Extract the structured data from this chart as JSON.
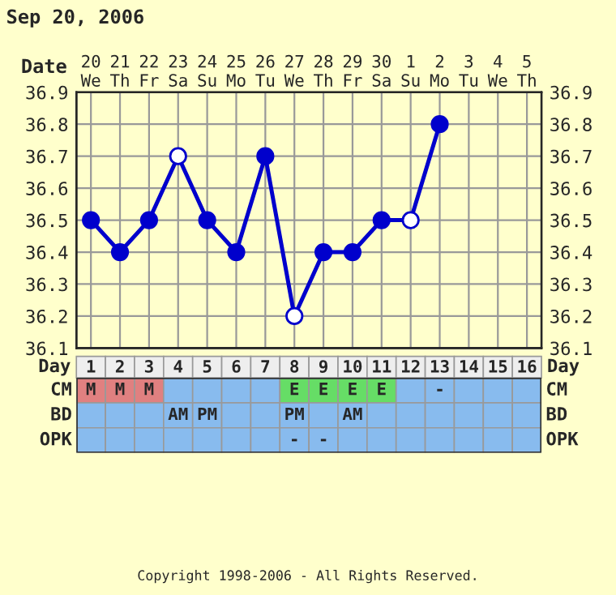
{
  "chart_data": [
    {
      "type": "line",
      "title": "Sep 20, 2006",
      "xlabel": "Day",
      "x2label": "Date",
      "xlim": [
        0.5,
        16.5
      ],
      "xticks": [
        1,
        2,
        3,
        4,
        5,
        6,
        7,
        8,
        9,
        10,
        11,
        12,
        13,
        14,
        15,
        16
      ],
      "x2lim": [
        "2006-09-19T12:00",
        "2006-10-05T12:00"
      ],
      "x2ticks": [
        {
          "value": "2006-09-20",
          "label": "20\nWe"
        },
        {
          "value": "2006-09-21",
          "label": "21\nTh"
        },
        {
          "value": "2006-09-22",
          "label": "22\nFr"
        },
        {
          "value": "2006-09-23",
          "label": "23\nSa"
        },
        {
          "value": "2006-09-24",
          "label": "24\nSu"
        },
        {
          "value": "2006-09-25",
          "label": "25\nMo"
        },
        {
          "value": "2006-09-26",
          "label": "26\nTu"
        },
        {
          "value": "2006-09-27",
          "label": "27\nWe"
        },
        {
          "value": "2006-09-28",
          "label": "28\nTh"
        },
        {
          "value": "2006-09-29",
          "label": "29\nFr"
        },
        {
          "value": "2006-09-30",
          "label": "30\nSa"
        },
        {
          "value": "2006-10-01",
          "label": "1\nSu"
        },
        {
          "value": "2006-10-02",
          "label": "2\nMo"
        },
        {
          "value": "2006-10-03",
          "label": "3\nTu"
        },
        {
          "value": "2006-10-04",
          "label": "4\nWe"
        },
        {
          "value": "2006-10-05",
          "label": "5\nTh"
        }
      ],
      "series": [
        {
          "color": "#0000cc",
          "x": [
            1,
            2,
            3,
            4,
            5,
            6,
            7,
            8,
            9,
            10,
            11,
            12,
            13
          ],
          "values": [
            36.5,
            36.4,
            36.5,
            36.7,
            36.5,
            36.4,
            36.7,
            36.2,
            36.4,
            36.4,
            36.5,
            36.5,
            36.8
          ],
          "colors": [
            "#0000cc",
            "#0000cc",
            "#0000cc",
            "#ffffff",
            "#0000cc",
            "#0000cc",
            "#0000cc",
            "#ffffff",
            "#0000cc",
            "#0000cc",
            "#0000cc",
            "#ffffff",
            "#0000cc"
          ]
        }
      ],
      "ylim": [
        36.1,
        36.9
      ],
      "yticks": [
        36.1,
        36.2,
        36.3,
        36.4,
        36.5,
        36.6,
        36.7,
        36.8,
        36.9
      ],
      "y2lim": [
        36.1,
        36.9
      ],
      "y2ticks": [
        36.1,
        36.2,
        36.3,
        36.4,
        36.5,
        36.6,
        36.7,
        36.8,
        36.9
      ],
      "grid": true,
      "marker": "circle",
      "line_style": "solid"
    },
    {
      "type": "other",
      "y_categories": [
        "CM",
        "BD",
        "OPK"
      ],
      "cell_labels": [
        [
          "M",
          "M",
          "M",
          null,
          null,
          null,
          null,
          "E",
          "E",
          "E",
          "E",
          null,
          "-",
          null,
          null,
          null
        ],
        [
          null,
          null,
          null,
          "AM",
          "PM",
          null,
          null,
          "PM",
          null,
          "AM",
          null,
          null,
          null,
          null,
          null,
          null
        ],
        [
          null,
          null,
          null,
          null,
          null,
          null,
          null,
          "-",
          "-",
          null,
          null,
          null,
          null,
          null,
          null,
          null
        ]
      ],
      "colors": [
        [
          "#e08080",
          "#e08080",
          "#e08080",
          null,
          null,
          null,
          null,
          "#66dd66",
          "#66dd66",
          "#66dd66",
          "#66dd66",
          null,
          null,
          null,
          null,
          null
        ],
        [
          null,
          null,
          null,
          null,
          null,
          null,
          null,
          null,
          null,
          null,
          null,
          null,
          null,
          null,
          null,
          null
        ],
        [
          null,
          null,
          null,
          null,
          null,
          null,
          null,
          null,
          null,
          null,
          null,
          null,
          null,
          null,
          null,
          null
        ]
      ],
      "annotations": [
        "Copyright 1998-2006 - All Rights Reserved."
      ]
    }
  ]
}
